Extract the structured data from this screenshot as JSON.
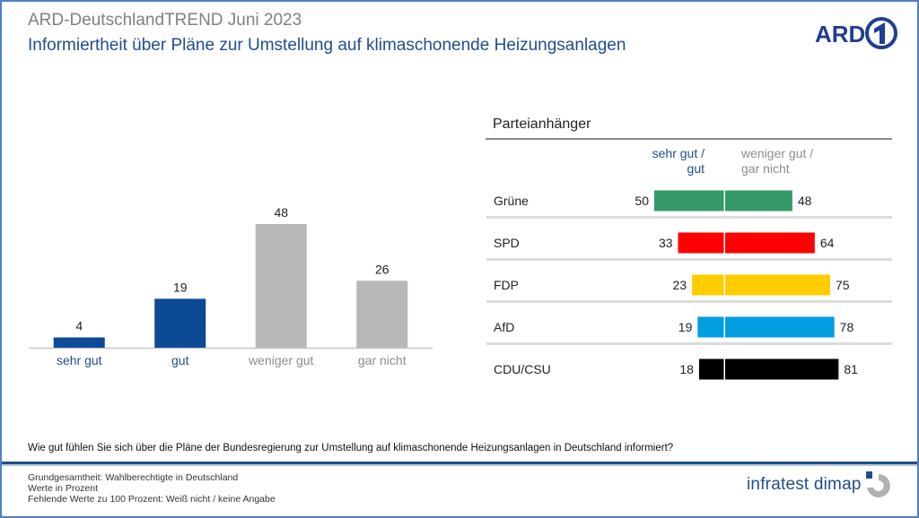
{
  "header": {
    "title": "ARD-DeutschlandTREND Juni 2023",
    "subtitle": "Informiertheit über Pläne zur Umstellung auf klimaschonende Heizungsanlagen",
    "logo": "ARD-logo"
  },
  "chart_data": [
    {
      "type": "bar",
      "title": "",
      "categories": [
        "sehr gut",
        "gut",
        "weniger gut",
        "gar nicht"
      ],
      "values": [
        4,
        19,
        48,
        26
      ],
      "colors": [
        "#0d4a96",
        "#0d4a96",
        "#b8b8b8",
        "#b8b8b8"
      ],
      "label_colors": [
        "#1f4e8c",
        "#1f4e8c",
        "#8c8c8c",
        "#8c8c8c"
      ],
      "xlabel": "",
      "ylabel": "",
      "ylim": [
        0,
        50
      ],
      "grid": false
    },
    {
      "type": "bar",
      "orientation": "horizontal-diverging",
      "title": "Parteianhänger",
      "categories": [
        "Grüne",
        "SPD",
        "FDP",
        "AfD",
        "CDU/CSU"
      ],
      "series": [
        {
          "name": "sehr gut / gut",
          "values": [
            50,
            33,
            23,
            19,
            18
          ]
        },
        {
          "name": "weniger gut / gar nicht",
          "values": [
            48,
            64,
            75,
            78,
            81
          ]
        }
      ],
      "colors": [
        "#339966",
        "#ff0000",
        "#ffcc00",
        "#009ee0",
        "#000000"
      ],
      "xlim": [
        -100,
        100
      ],
      "grid": false
    }
  ],
  "party_panel": {
    "title": "Parteianhänger",
    "header_left_line1": "sehr gut /",
    "header_left_line2": "gut",
    "header_right_line1": "weniger gut /",
    "header_right_line2": "gar nicht"
  },
  "footer": {
    "question": "Wie gut fühlen Sie sich über die Pläne der Bundesregierung zur Umstellung auf klimaschonende Heizungsanlagen in Deutschland informiert?",
    "notes": [
      "Grundgesamtheit: Wahlberechtigte in Deutschland",
      "Werte in Prozent",
      "Fehlende Werte zu 100 Prozent: Weiß nicht / keine Angabe"
    ],
    "brand": "infratest dimap"
  }
}
